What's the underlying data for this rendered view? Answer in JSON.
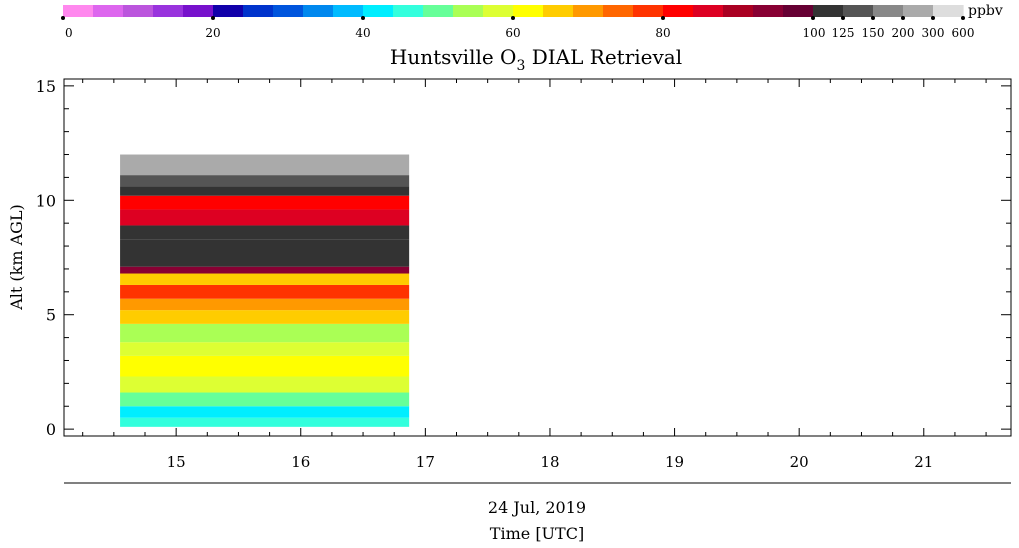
{
  "chart_data": {
    "type": "heatmap",
    "title_prefix": "Huntsville O",
    "title_sub": "3",
    "title_suffix": " DIAL Retrieval",
    "xlabel": "Time [UTC]",
    "ylabel": "Alt (km AGL)",
    "date_label": "24 Jul, 2019",
    "x_range": [
      14.1,
      21.7
    ],
    "y_range": [
      -0.3,
      15.3
    ],
    "x_ticks": [
      "15",
      "16",
      "17",
      "18",
      "19",
      "20",
      "21"
    ],
    "y_ticks": [
      "0",
      "5",
      "10",
      "15"
    ],
    "colorbar": {
      "unit": "ppbv",
      "colors": [
        "#ff88ee",
        "#dd66ee",
        "#bb55dd",
        "#9933dd",
        "#7711cc",
        "#1100aa",
        "#0033cc",
        "#0055dd",
        "#0088ee",
        "#00bbff",
        "#00eeff",
        "#33ffdd",
        "#66ff99",
        "#aaff55",
        "#ddff33",
        "#ffff00",
        "#ffcc00",
        "#ff9900",
        "#ff6600",
        "#ff3300",
        "#ff0000",
        "#dd0022",
        "#aa0022",
        "#880033",
        "#660033",
        "#333333",
        "#555555",
        "#888888",
        "#aaaaaa",
        "#dddddd"
      ],
      "tick_labels": [
        "0",
        "20",
        "40",
        "60",
        "80",
        "100",
        "125",
        "150",
        "200",
        "300",
        "600"
      ]
    },
    "curtain": {
      "x_start": 14.55,
      "x_end": 16.87,
      "alt_bottom": 0.1,
      "alt_top": 12.0,
      "layers": [
        {
          "top": 0.5,
          "color": "#33ffdd"
        },
        {
          "top": 1.0,
          "color": "#00eeff"
        },
        {
          "top": 1.6,
          "color": "#66ff99"
        },
        {
          "top": 2.3,
          "color": "#ddff33"
        },
        {
          "top": 3.2,
          "color": "#ffff00"
        },
        {
          "top": 3.8,
          "color": "#ddff33"
        },
        {
          "top": 4.6,
          "color": "#aaff55"
        },
        {
          "top": 5.2,
          "color": "#ffcc00"
        },
        {
          "top": 5.7,
          "color": "#ff9900"
        },
        {
          "top": 6.3,
          "color": "#ff3300"
        },
        {
          "top": 6.8,
          "color": "#ffcc00"
        },
        {
          "top": 7.1,
          "color": "#880033"
        },
        {
          "top": 8.3,
          "color": "#333333"
        },
        {
          "top": 8.9,
          "color": "#333333"
        },
        {
          "top": 9.6,
          "color": "#dd0022"
        },
        {
          "top": 10.2,
          "color": "#ff0000"
        },
        {
          "top": 10.6,
          "color": "#333333"
        },
        {
          "top": 11.1,
          "color": "#555555"
        },
        {
          "top": 12.0,
          "color": "#aaaaaa"
        }
      ]
    }
  }
}
